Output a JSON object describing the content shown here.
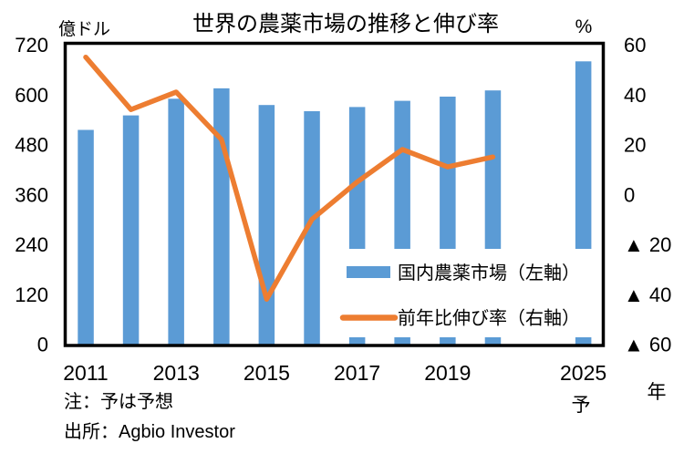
{
  "title": "世界の農薬市場の推移と伸び率",
  "axes": {
    "left": {
      "unit": "億ドル",
      "ticks": [
        720,
        600,
        480,
        360,
        240,
        120,
        0
      ]
    },
    "right": {
      "unit": "%",
      "ticks": [
        60,
        40,
        20,
        0,
        -20,
        -40,
        -60
      ],
      "negative_prefix": "▲ "
    },
    "x": {
      "unit": "年",
      "forecast_marker": "予",
      "ticks": [
        {
          "label": "2011",
          "slot": 0
        },
        {
          "label": "2013",
          "slot": 2
        },
        {
          "label": "2015",
          "slot": 4
        },
        {
          "label": "2017",
          "slot": 6
        },
        {
          "label": "2019",
          "slot": 8
        },
        {
          "label": "2025",
          "slot": 11
        }
      ]
    }
  },
  "legend": {
    "items": [
      {
        "label": "国内農薬市場（左軸）",
        "marker": "bar",
        "color": "#5B9BD5"
      },
      {
        "label": "前年比伸び率（右軸）",
        "marker": "line",
        "color": "#ED7D31"
      }
    ]
  },
  "notes": {
    "forecast": "注：予は予想",
    "source": "出所：Agbio Investor"
  },
  "colors": {
    "bar": "#5B9BD5",
    "line": "#ED7D31",
    "text": "#000000",
    "axis_border": "#000000",
    "background": "#FFFFFF"
  },
  "chart_data": {
    "type": "combo-bar-line",
    "title": "世界の農薬市場の推移と伸び率",
    "categories": [
      "2011",
      "2012",
      "2013",
      "2014",
      "2015",
      "2016",
      "2017",
      "2018",
      "2019",
      "2020",
      "2025"
    ],
    "category_slots": [
      0,
      1,
      2,
      3,
      4,
      5,
      6,
      7,
      8,
      9,
      11
    ],
    "series": [
      {
        "name": "国内農薬市場（左軸）",
        "type": "bar",
        "axis": "left",
        "unit": "億ドル",
        "values": [
          515,
          550,
          590,
          615,
          575,
          560,
          570,
          585,
          595,
          610,
          680
        ]
      },
      {
        "name": "前年比伸び率（右軸）",
        "type": "line",
        "axis": "right",
        "unit": "%",
        "values": [
          55,
          34,
          41,
          22,
          -42,
          -10,
          5,
          18,
          11,
          15,
          null
        ]
      }
    ],
    "left_ylim": [
      0,
      720
    ],
    "right_ylim": [
      -60,
      60
    ],
    "grid": false,
    "legend_position": "inside-right",
    "notes": [
      "注：予は予想",
      "出所：Agbio Investor"
    ]
  }
}
